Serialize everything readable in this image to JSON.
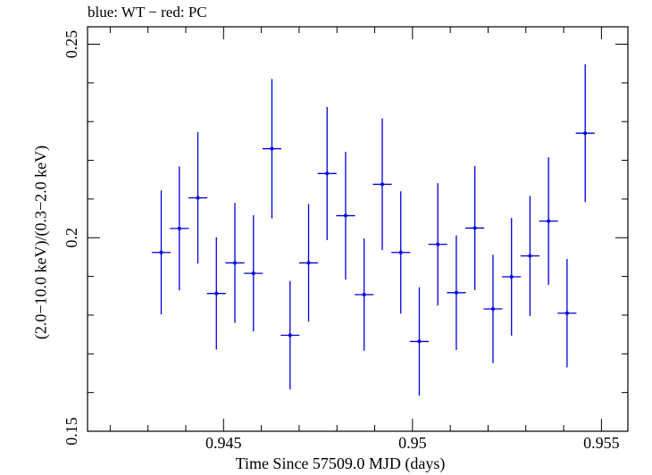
{
  "chart_data": {
    "type": "scatter",
    "title": "blue: WT − red: PC",
    "xlabel": "Time Since 57509.0 MJD (days)",
    "ylabel": "(2.0−10.0 keV)/(0.3−2.0 keV)",
    "xlim": [
      0.9414,
      0.9557
    ],
    "ylim": [
      0.15,
      0.2545
    ],
    "x_ticks": [
      {
        "value": 0.945,
        "label": "0.945"
      },
      {
        "value": 0.95,
        "label": "0.95"
      },
      {
        "value": 0.955,
        "label": "0.955"
      }
    ],
    "y_ticks": [
      {
        "value": 0.15,
        "label": "0.15"
      },
      {
        "value": 0.2,
        "label": "0.2"
      },
      {
        "value": 0.25,
        "label": "0.25"
      }
    ],
    "grid": false,
    "series": [
      {
        "color": "#0000dd",
        "points": [
          {
            "x": 0.94335,
            "xerr": 0.00025,
            "y": 0.1962,
            "yerr": 0.016
          },
          {
            "x": 0.94383,
            "xerr": 0.00025,
            "y": 0.2024,
            "yerr": 0.016
          },
          {
            "x": 0.94432,
            "xerr": 0.00025,
            "y": 0.2103,
            "yerr": 0.017
          },
          {
            "x": 0.94481,
            "xerr": 0.00025,
            "y": 0.1856,
            "yerr": 0.0145
          },
          {
            "x": 0.9453,
            "xerr": 0.00025,
            "y": 0.1935,
            "yerr": 0.0155
          },
          {
            "x": 0.94579,
            "xerr": 0.00025,
            "y": 0.1908,
            "yerr": 0.015
          },
          {
            "x": 0.94628,
            "xerr": 0.00025,
            "y": 0.223,
            "yerr": 0.018
          },
          {
            "x": 0.94676,
            "xerr": 0.00025,
            "y": 0.1748,
            "yerr": 0.014
          },
          {
            "x": 0.94725,
            "xerr": 0.00025,
            "y": 0.1935,
            "yerr": 0.0152
          },
          {
            "x": 0.94774,
            "xerr": 0.00025,
            "y": 0.2166,
            "yerr": 0.0172
          },
          {
            "x": 0.94823,
            "xerr": 0.00025,
            "y": 0.2057,
            "yerr": 0.0165
          },
          {
            "x": 0.94872,
            "xerr": 0.00025,
            "y": 0.1853,
            "yerr": 0.0145
          },
          {
            "x": 0.9492,
            "xerr": 0.00025,
            "y": 0.2138,
            "yerr": 0.017
          },
          {
            "x": 0.94969,
            "xerr": 0.00025,
            "y": 0.1962,
            "yerr": 0.0158
          },
          {
            "x": 0.95018,
            "xerr": 0.00025,
            "y": 0.1732,
            "yerr": 0.014
          },
          {
            "x": 0.95067,
            "xerr": 0.00025,
            "y": 0.1983,
            "yerr": 0.0158
          },
          {
            "x": 0.95116,
            "xerr": 0.00025,
            "y": 0.1858,
            "yerr": 0.0148
          },
          {
            "x": 0.95165,
            "xerr": 0.00025,
            "y": 0.2025,
            "yerr": 0.016
          },
          {
            "x": 0.95213,
            "xerr": 0.00025,
            "y": 0.1816,
            "yerr": 0.014
          },
          {
            "x": 0.95262,
            "xerr": 0.00025,
            "y": 0.1899,
            "yerr": 0.0152
          },
          {
            "x": 0.95311,
            "xerr": 0.00025,
            "y": 0.1953,
            "yerr": 0.0155
          },
          {
            "x": 0.9536,
            "xerr": 0.00025,
            "y": 0.2043,
            "yerr": 0.0165
          },
          {
            "x": 0.95409,
            "xerr": 0.00025,
            "y": 0.1805,
            "yerr": 0.014
          },
          {
            "x": 0.95457,
            "xerr": 0.00025,
            "y": 0.227,
            "yerr": 0.0178
          }
        ]
      }
    ]
  }
}
